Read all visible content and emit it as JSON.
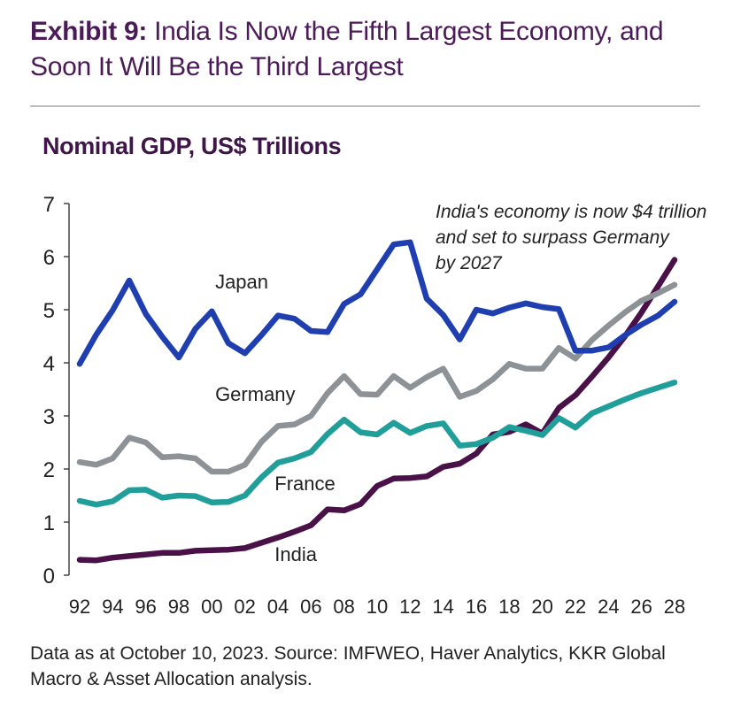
{
  "header": {
    "exhibit": "Exhibit 9:",
    "title": "India Is Now the Fifth Largest Economy, and Soon It Will Be the Third Largest"
  },
  "footer": {
    "note": "Data as at October 10, 2023. Source: IMFWEO, Haver Analytics, KKR Global Macro & Asset Allocation analysis."
  },
  "chart_data": {
    "type": "line",
    "title": "Nominal GDP, US$ Trillions",
    "xlabel": "",
    "ylabel": "",
    "ylim": [
      0,
      7
    ],
    "yticks": [
      "0",
      "1",
      "2",
      "3",
      "4",
      "5",
      "6",
      "7"
    ],
    "xticks": [
      "92",
      "94",
      "96",
      "98",
      "00",
      "02",
      "04",
      "06",
      "08",
      "10",
      "12",
      "14",
      "16",
      "18",
      "20",
      "22",
      "24",
      "26",
      "28"
    ],
    "x": [
      1992,
      1993,
      1994,
      1995,
      1996,
      1997,
      1998,
      1999,
      2000,
      2001,
      2002,
      2003,
      2004,
      2005,
      2006,
      2007,
      2008,
      2009,
      2010,
      2011,
      2012,
      2013,
      2014,
      2015,
      2016,
      2017,
      2018,
      2019,
      2020,
      2021,
      2022,
      2023,
      2024,
      2025,
      2026,
      2027,
      2028
    ],
    "annotation": "India's economy is now $4 trillion and set to surpass Germany by 2027",
    "series": [
      {
        "name": "Japan",
        "color": "#1f3fb0",
        "values": [
          3.98,
          4.53,
          4.99,
          5.55,
          4.92,
          4.49,
          4.1,
          4.64,
          4.97,
          4.37,
          4.18,
          4.52,
          4.89,
          4.83,
          4.6,
          4.58,
          5.11,
          5.29,
          5.76,
          6.23,
          6.27,
          5.21,
          4.9,
          4.44,
          5.0,
          4.93,
          5.04,
          5.12,
          5.05,
          5.01,
          4.23,
          4.23,
          4.29,
          4.52,
          4.72,
          4.89,
          5.15
        ]
      },
      {
        "name": "Germany",
        "color": "#8c9296",
        "values": [
          2.13,
          2.08,
          2.2,
          2.59,
          2.5,
          2.22,
          2.24,
          2.2,
          1.95,
          1.95,
          2.08,
          2.51,
          2.81,
          2.84,
          3.0,
          3.43,
          3.75,
          3.41,
          3.4,
          3.75,
          3.53,
          3.73,
          3.89,
          3.36,
          3.47,
          3.69,
          3.98,
          3.89,
          3.89,
          4.28,
          4.08,
          4.43,
          4.7,
          4.95,
          5.17,
          5.31,
          5.47
        ]
      },
      {
        "name": "France",
        "color": "#1f9e9a",
        "values": [
          1.4,
          1.33,
          1.39,
          1.6,
          1.61,
          1.46,
          1.5,
          1.49,
          1.37,
          1.38,
          1.5,
          1.84,
          2.12,
          2.2,
          2.32,
          2.66,
          2.93,
          2.69,
          2.65,
          2.87,
          2.68,
          2.81,
          2.86,
          2.44,
          2.47,
          2.59,
          2.79,
          2.72,
          2.64,
          2.96,
          2.78,
          3.05,
          3.18,
          3.31,
          3.43,
          3.53,
          3.63
        ]
      },
      {
        "name": "India",
        "color": "#4a1048",
        "values": [
          0.29,
          0.28,
          0.33,
          0.36,
          0.39,
          0.42,
          0.42,
          0.46,
          0.47,
          0.48,
          0.51,
          0.61,
          0.71,
          0.82,
          0.94,
          1.24,
          1.22,
          1.34,
          1.68,
          1.82,
          1.83,
          1.86,
          2.04,
          2.1,
          2.29,
          2.65,
          2.7,
          2.84,
          2.67,
          3.15,
          3.39,
          3.74,
          4.1,
          4.5,
          4.95,
          5.44,
          5.94
        ]
      }
    ]
  }
}
